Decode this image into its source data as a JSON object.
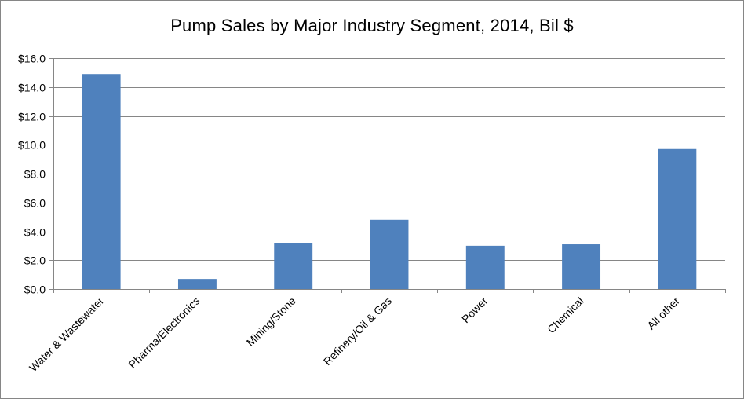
{
  "chart_data": {
    "type": "bar",
    "title": "Pump Sales by Major Industry Segment, 2014, Bil $",
    "xlabel": "",
    "ylabel": "",
    "categories": [
      "Water & Wastewater",
      "Pharma/Electronics",
      "Mining/Stone",
      "Refinery/Oil & Gas",
      "Power",
      "Chemical",
      "All other"
    ],
    "values": [
      14.9,
      0.7,
      3.2,
      4.8,
      3.0,
      3.1,
      9.7
    ],
    "ylim": [
      0,
      16
    ],
    "yticks": [
      "$0.0",
      "$2.0",
      "$4.0",
      "$6.0",
      "$8.0",
      "$10.0",
      "$12.0",
      "$14.0",
      "$16.0"
    ],
    "grid": true,
    "legend": "none",
    "bar_color": "#4f81bd",
    "grid_color": "#868686"
  }
}
